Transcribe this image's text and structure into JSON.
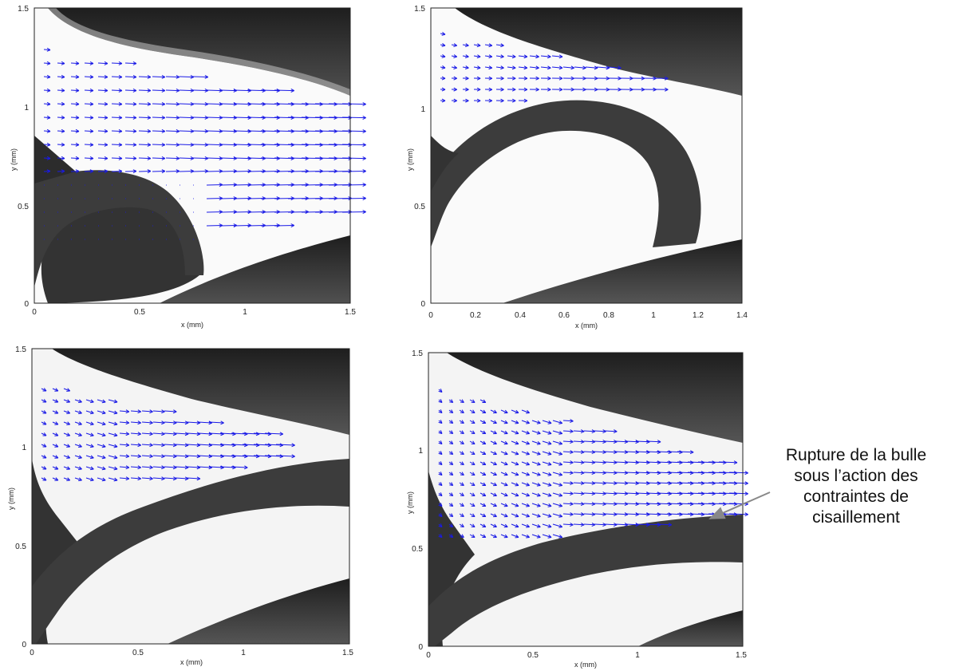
{
  "panels": [
    {
      "xlabel": "x (mm)",
      "ylabel": "y (mm)",
      "x_ticks": [
        "0",
        "0.5",
        "1",
        "1.5"
      ],
      "y_ticks": [
        "0",
        "0.5",
        "1",
        "1.5"
      ]
    },
    {
      "xlabel": "x (mm)",
      "ylabel": "y (mm)",
      "x_ticks": [
        "0",
        "0.2",
        "0.4",
        "0.6",
        "0.8",
        "1",
        "1.2",
        "1.4"
      ],
      "y_ticks": [
        "0",
        "0.5",
        "1",
        "1.5"
      ]
    },
    {
      "xlabel": "x (mm)",
      "ylabel": "y (mm)",
      "x_ticks": [
        "0",
        "0.5",
        "1",
        "1.5"
      ],
      "y_ticks": [
        "0",
        "0.5",
        "1",
        "1.5"
      ]
    },
    {
      "xlabel": "x (mm)",
      "ylabel": "y (mm)",
      "x_ticks": [
        "0",
        "0.5",
        "1",
        "1.5"
      ],
      "y_ticks": [
        "0",
        "0.5",
        "1",
        "1.5"
      ]
    }
  ],
  "annotation": {
    "lines": [
      "Rupture de la bulle",
      "sous l’action des",
      "contraintes de",
      "cisaillement"
    ]
  },
  "colors": {
    "vector": "#1a1ae6",
    "dark": "#2a2a2a",
    "bubble": "#3a3a3a"
  }
}
